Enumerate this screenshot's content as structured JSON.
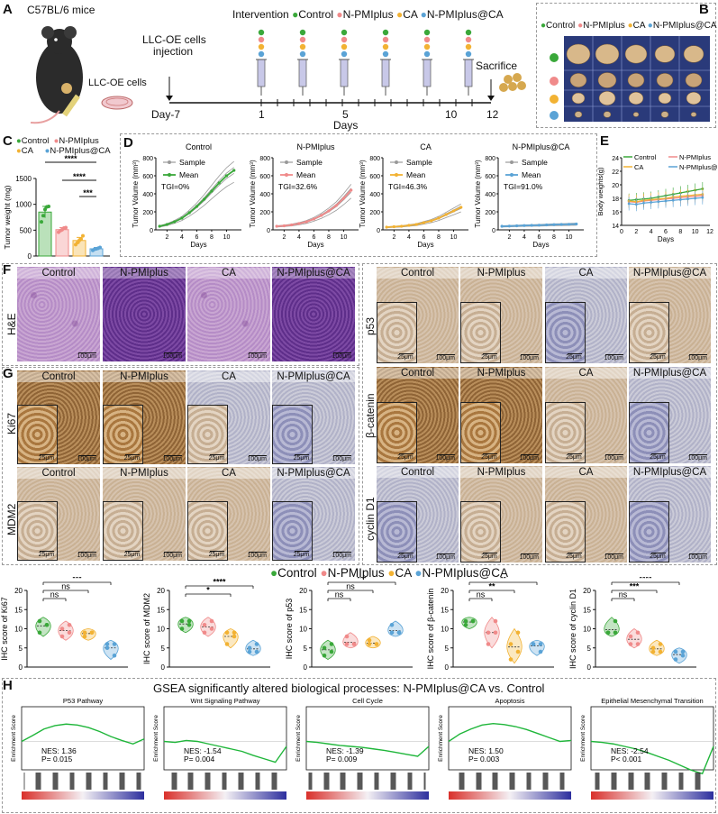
{
  "panels": {
    "A": "A",
    "B": "B",
    "C": "C",
    "D": "D",
    "E": "E",
    "F": "F",
    "G": "G",
    "H": "H"
  },
  "colors": {
    "control": "#3aa83a",
    "npmi": "#f08a8a",
    "ca": "#f2b233",
    "npmi_ca": "#5aa3d6"
  },
  "panelA": {
    "mouse_label": "C57BL/6 mice",
    "cells_label": "LLC-OE cells",
    "injection_label_1": "LLC-OE cells",
    "injection_label_2": "injection",
    "intervention_label": "Intervention",
    "legend": [
      "Control",
      "N-PMIplus",
      "CA",
      "N-PMIplus@CA"
    ],
    "sacrifice_label": "Sacrifice",
    "day_start": "Day-7",
    "tick_labels": [
      "1",
      "5",
      "10",
      "12"
    ],
    "axis_label": "Days"
  },
  "panelB": {
    "legend": [
      "Control",
      "N-PMIplus",
      "CA",
      "N-PMIplus@CA"
    ]
  },
  "chart_data": [
    {
      "id": "C",
      "type": "bar",
      "ylabel": "Tumor weight (mg)",
      "ylim": [
        0,
        1500
      ],
      "yticks": [
        "0",
        "500",
        "1000",
        "1500"
      ],
      "categories": [
        "Control",
        "N-PMIplus",
        "CA",
        "N-PMIplus@CA"
      ],
      "values": [
        850,
        510,
        300,
        140
      ],
      "errors": [
        110,
        40,
        60,
        25
      ],
      "points": [
        [
          660,
          780,
          900,
          950,
          960
        ],
        [
          460,
          490,
          510,
          540,
          550
        ],
        [
          220,
          260,
          300,
          330,
          390
        ],
        [
          110,
          130,
          140,
          150,
          165
        ]
      ],
      "significance": [
        "****",
        "****",
        "***"
      ],
      "legend": [
        "Control",
        "N-PMIplus",
        "CA",
        "N-PMIplus@CA"
      ]
    },
    {
      "id": "D",
      "type": "line",
      "ylabel": "Tumor Volume (mm³)",
      "xlabel": "Days",
      "ylim": [
        0,
        800
      ],
      "yticks": [
        "0",
        "200",
        "400",
        "600",
        "800"
      ],
      "x": [
        1,
        2,
        3,
        4,
        5,
        6,
        7,
        8,
        9,
        10,
        11
      ],
      "xticks": [
        "2",
        "4",
        "6",
        "8",
        "10"
      ],
      "legend_sample": "Sample",
      "legend_mean": "Mean",
      "subplots": [
        {
          "title": "Control",
          "tgi": "TGI=0%",
          "mean": [
            40,
            60,
            90,
            130,
            190,
            260,
            340,
            430,
            520,
            600,
            660
          ]
        },
        {
          "title": "N-PMIplus",
          "tgi": "TGI=32.6%",
          "mean": [
            40,
            45,
            55,
            70,
            90,
            120,
            160,
            210,
            270,
            350,
            440
          ]
        },
        {
          "title": "CA",
          "tgi": "TGI=46.3%",
          "mean": [
            30,
            35,
            40,
            50,
            60,
            80,
            100,
            130,
            170,
            210,
            250
          ]
        },
        {
          "title": "N-PMIplus@CA",
          "tgi": "TGI=91.0%",
          "mean": [
            40,
            42,
            45,
            48,
            50,
            52,
            55,
            58,
            60,
            62,
            65
          ]
        }
      ]
    },
    {
      "id": "E",
      "type": "line",
      "ylabel": "Body weights(g)",
      "xlabel": "Days",
      "ylim": [
        14,
        24
      ],
      "yticks": [
        "14",
        "16",
        "18",
        "20",
        "22",
        "24"
      ],
      "xticks": [
        "0",
        "2",
        "4",
        "6",
        "8",
        "10",
        "12"
      ],
      "x": [
        1,
        2,
        3,
        4,
        5,
        6,
        7,
        8,
        9,
        10,
        11
      ],
      "series": [
        {
          "name": "Control",
          "values": [
            17.7,
            17.8,
            17.9,
            18.0,
            18.2,
            18.4,
            18.6,
            18.8,
            19.0,
            19.2,
            19.4
          ]
        },
        {
          "name": "N-PMIplus",
          "values": [
            17.5,
            17.4,
            17.6,
            17.7,
            17.8,
            17.9,
            18.0,
            18.1,
            18.2,
            18.3,
            18.4
          ]
        },
        {
          "name": "CA",
          "values": [
            17.6,
            17.5,
            17.7,
            17.8,
            17.9,
            18.0,
            18.2,
            18.3,
            18.4,
            18.5,
            18.6
          ]
        },
        {
          "name": "N-PMIplus@CA",
          "values": [
            17.2,
            17.1,
            17.3,
            17.4,
            17.5,
            17.6,
            17.7,
            17.8,
            17.9,
            18.0,
            18.1
          ]
        }
      ]
    },
    {
      "id": "IHC",
      "type": "scatter",
      "legend": [
        "Control",
        "N-PMIplus",
        "CA",
        "N-PMIplus@CA"
      ],
      "ylim": [
        0,
        20
      ],
      "yticks": [
        "0",
        "5",
        "10",
        "15",
        "20"
      ],
      "subplots": [
        {
          "ylabel": "IHC score of Ki67",
          "points": [
            [
              9,
              11,
              12,
              11
            ],
            [
              8,
              9,
              10,
              11
            ],
            [
              8,
              9,
              9,
              9
            ],
            [
              5,
              6,
              6,
              3
            ]
          ],
          "significance": [
            "ns",
            "ns",
            "***"
          ]
        },
        {
          "ylabel": "IHC score of MDM2",
          "points": [
            [
              10,
              12,
              12,
              11
            ],
            [
              9,
              10,
              11,
              12
            ],
            [
              6,
              8,
              9,
              9
            ],
            [
              4,
              4,
              5,
              6
            ]
          ],
          "significance": [
            "*",
            "****"
          ]
        },
        {
          "ylabel": "IHC score of p53",
          "points": [
            [
              3,
              4,
              5,
              6
            ],
            [
              6,
              6,
              8,
              6
            ],
            [
              6,
              6,
              7,
              6
            ],
            [
              9,
              9,
              11,
              9
            ]
          ],
          "significance": [
            "ns",
            "ns",
            "***"
          ]
        },
        {
          "ylabel": "IHC score of β-catenin",
          "points": [
            [
              11,
              12,
              12,
              12
            ],
            [
              6,
              9,
              9,
              12
            ],
            [
              2,
              4,
              6,
              9
            ],
            [
              6,
              6,
              6,
              4
            ]
          ],
          "significance": [
            "ns",
            "**",
            "**"
          ]
        },
        {
          "ylabel": "IHC score of cyclin D1",
          "points": [
            [
              9,
              9,
              9,
              12
            ],
            [
              6,
              6,
              8,
              9
            ],
            [
              4,
              4,
              5,
              6
            ],
            [
              2,
              3,
              4,
              4
            ]
          ],
          "significance": [
            "ns",
            "***",
            "****"
          ]
        }
      ]
    },
    {
      "id": "H",
      "type": "line",
      "title": "GSEA significantly altered biological processes: N-PMIplus@CA vs. Control",
      "ylabel": "Enrichment Score",
      "subplots": [
        {
          "title": "P53 Pathway",
          "nes": "NES: 1.36",
          "p": "P= 0.015",
          "curve": [
            0,
            0.12,
            0.25,
            0.32,
            0.35,
            0.33,
            0.28,
            0.2,
            0.1,
            0.02,
            -0.05,
            0.05
          ]
        },
        {
          "title": "Wnt Signaling Pathway",
          "nes": "NES: -1.54",
          "p": "P= 0.004",
          "curve": [
            0,
            -0.02,
            0.02,
            0.0,
            -0.05,
            -0.1,
            -0.15,
            -0.2,
            -0.28,
            -0.35,
            -0.42,
            -0.1
          ]
        },
        {
          "title": "Cell Cycle",
          "nes": "NES: -1.39",
          "p": "P= 0.009",
          "curve": [
            0,
            -0.02,
            -0.05,
            -0.08,
            -0.1,
            -0.12,
            -0.15,
            -0.18,
            -0.22,
            -0.26,
            -0.3,
            -0.1
          ]
        },
        {
          "title": "Apoptosis",
          "nes": "NES: 1.50",
          "p": "P= 0.003",
          "curve": [
            0,
            0.15,
            0.25,
            0.33,
            0.36,
            0.34,
            0.3,
            0.24,
            0.16,
            0.08,
            0.0,
            0.02
          ]
        },
        {
          "title": "Epithelial Mesenchymal Transition",
          "nes": "NES: -2.54",
          "p": "P< 0.001",
          "curve": [
            0,
            -0.02,
            -0.05,
            -0.1,
            -0.15,
            -0.22,
            -0.3,
            -0.38,
            -0.48,
            -0.58,
            -0.65,
            -0.1
          ]
        }
      ]
    }
  ],
  "panelF": {
    "he_row_label": "H&E",
    "he_titles": [
      "Control",
      "N-PMIplus",
      "CA",
      "N-PMIplus@CA"
    ],
    "scale_100": "100μm",
    "scale_25": "25μm",
    "right_rows": [
      "p53",
      "β-catenin",
      "cyclin D1"
    ],
    "right_titles": [
      "Control",
      "N-PMIplus",
      "CA",
      "N-PMIplus@CA"
    ]
  },
  "panelG": {
    "rows": [
      "Ki67",
      "MDM2"
    ],
    "titles": [
      "Control",
      "N-PMIplus",
      "CA",
      "N-PMIplus@CA"
    ]
  }
}
